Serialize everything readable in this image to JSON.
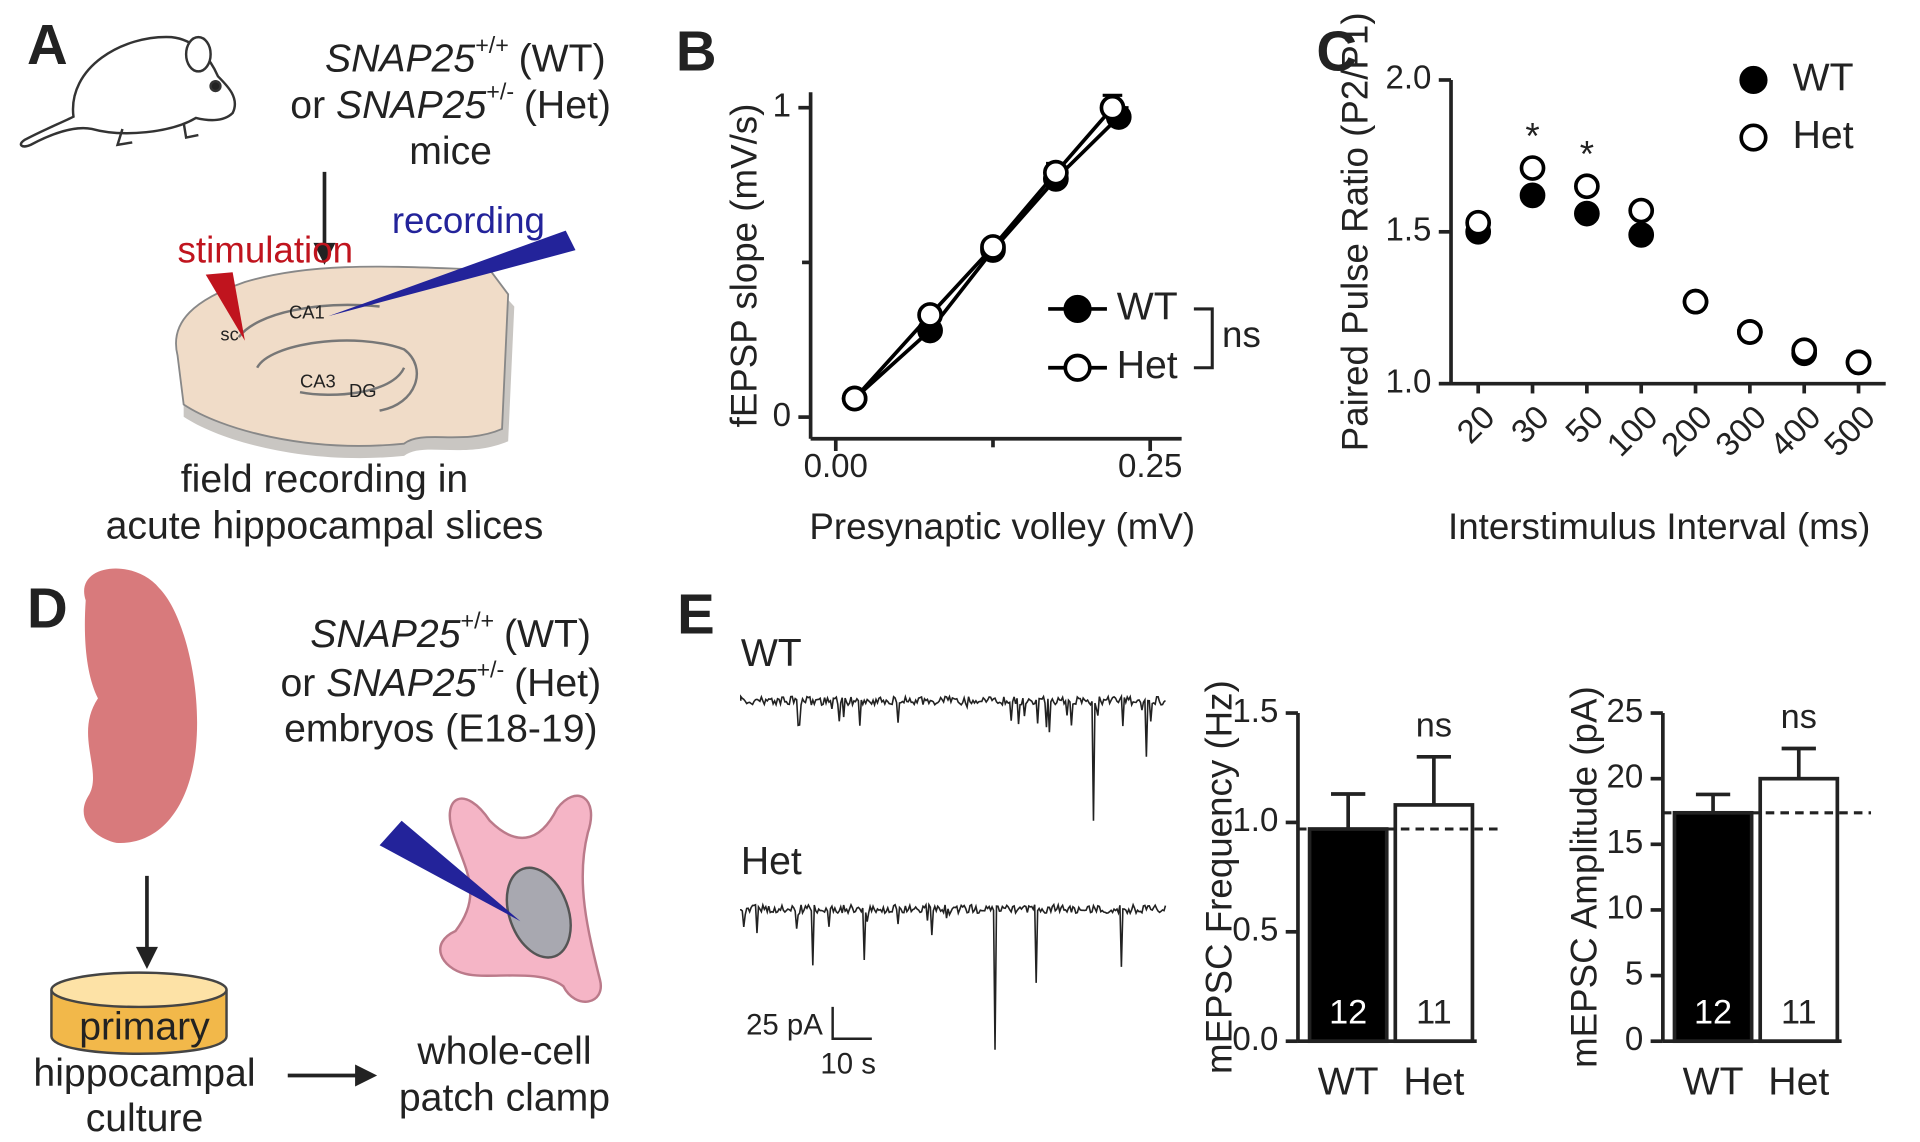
{
  "panel_a": {
    "label": "A",
    "wt": {
      "gene": "SNAP25",
      "sup": "+/+",
      "tag": "(WT)"
    },
    "or": "or",
    "het": {
      "gene": "SNAP25",
      "sup": "+/-",
      "tag": "(Het)"
    },
    "subject": "mice",
    "stimulation": "stimulation",
    "recording": "recording",
    "regions": [
      "CA1",
      "sc",
      "CA3",
      "DG"
    ],
    "caption": [
      "field recording in",
      "acute hippocampal slices"
    ]
  },
  "panel_d": {
    "label": "D",
    "wt": {
      "gene": "SNAP25",
      "sup": "+/+",
      "tag": "(WT)"
    },
    "or": "or",
    "het": {
      "gene": "SNAP25",
      "sup": "+/-",
      "tag": "(Het)"
    },
    "subject": "embryos (E18-19)",
    "culture": [
      "primary",
      "hippocampal",
      "culture"
    ],
    "patch": [
      "whole-cell",
      "patch clamp"
    ]
  },
  "panel_e": {
    "label": "E",
    "traces": [
      "WT",
      "Het"
    ],
    "scale": {
      "y": "25 pA",
      "x": "10 s"
    }
  },
  "chart_data": [
    {
      "panel": "B",
      "type": "line",
      "xlabel": "Presynaptic volley (mV)",
      "ylabel": "fEPSP slope (mV/s)",
      "xlim": [
        -0.02,
        0.275
      ],
      "ylim": [
        -0.07,
        1.05
      ],
      "xticks": [
        {
          "value": 0,
          "label": "0.00"
        },
        0.25
      ],
      "xminor": [
        0.125
      ],
      "yticks": [
        0,
        1
      ],
      "yminor": [
        0.5
      ],
      "series": [
        {
          "name": "WT",
          "color": "#000000",
          "marker_fill": "#000000",
          "x": [
            0.015,
            0.075,
            0.125,
            0.175,
            0.225
          ],
          "values": [
            0.06,
            0.28,
            0.54,
            0.77,
            0.97
          ],
          "errors": [
            0.01,
            0.02,
            0.02,
            0.03,
            0.03
          ]
        },
        {
          "name": "Het",
          "color": "#000000",
          "marker_fill": "#ffffff",
          "x": [
            0.015,
            0.075,
            0.125,
            0.175,
            0.22
          ],
          "values": [
            0.06,
            0.33,
            0.55,
            0.79,
            1.0
          ],
          "errors": [
            0.01,
            0.02,
            0.02,
            0.03,
            0.04
          ]
        }
      ],
      "annotation": "ns"
    },
    {
      "panel": "C",
      "type": "scatter",
      "xlabel": "Interstimulus Interval (ms)",
      "ylabel": "Paired Pulse Ratio (P2/P1)",
      "categories": [
        "20",
        "30",
        "50",
        "100",
        "200",
        "300",
        "400",
        "500"
      ],
      "ylim": [
        1.0,
        2.0
      ],
      "yticks": [
        {
          "value": 1.0,
          "label": "1.0"
        },
        {
          "value": 1.5,
          "label": "1.5"
        },
        {
          "value": 2.0,
          "label": "2.0"
        }
      ],
      "series": [
        {
          "name": "WT",
          "color": "#000000",
          "marker_fill": "#000000",
          "values": [
            1.5,
            1.62,
            1.56,
            1.49,
            1.27,
            1.17,
            1.1,
            1.07
          ]
        },
        {
          "name": "Het",
          "color": "#000000",
          "marker_fill": "#ffffff",
          "values": [
            1.53,
            1.71,
            1.65,
            1.57,
            1.27,
            1.17,
            1.11,
            1.07
          ]
        }
      ],
      "annotations": [
        null,
        "*",
        "*",
        null,
        null,
        null,
        null,
        null
      ]
    },
    {
      "type": "bar",
      "ylabel": "mEPSC Frequency (Hz)",
      "categories": [
        "WT",
        "Het"
      ],
      "values": [
        0.97,
        1.08
      ],
      "errors": [
        0.16,
        0.22
      ],
      "colors": [
        "#000000",
        "#ffffff"
      ],
      "bar_labels": [
        "12",
        "11"
      ],
      "annotations": [
        null,
        "ns"
      ],
      "reference_line": 0.97,
      "ylim": [
        0,
        1.5
      ],
      "yticks": [
        {
          "value": 0,
          "label": "0.0"
        },
        {
          "value": 0.5,
          "label": "0.5"
        },
        {
          "value": 1.0,
          "label": "1.0"
        },
        {
          "value": 1.5,
          "label": "1.5"
        }
      ]
    },
    {
      "type": "bar",
      "ylabel": "mEPSC Amplitude (pA)",
      "categories": [
        "WT",
        "Het"
      ],
      "values": [
        17.4,
        20.0
      ],
      "errors": [
        1.4,
        2.3
      ],
      "colors": [
        "#000000",
        "#ffffff"
      ],
      "bar_labels": [
        "12",
        "11"
      ],
      "annotations": [
        null,
        "ns"
      ],
      "reference_line": 17.4,
      "ylim": [
        0,
        25
      ],
      "yticks": [
        0,
        5,
        10,
        15,
        20,
        25
      ]
    }
  ]
}
